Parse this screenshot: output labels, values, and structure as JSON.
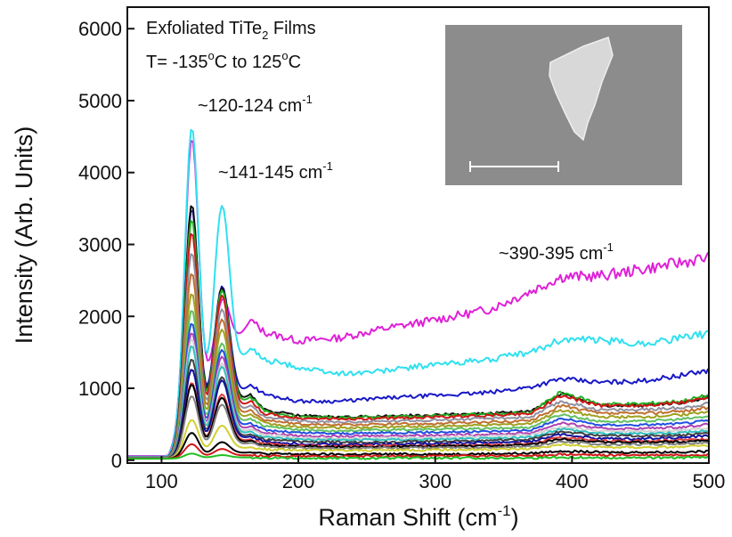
{
  "chart_data": {
    "type": "line",
    "title_line1": "Exfoliated TiTe",
    "title_line1_sub": "2",
    "title_line1_end": " Films",
    "title_line2": "T= -135",
    "title_line2_sup1": "o",
    "title_line2_mid": "C to 125",
    "title_line2_sup2": "o",
    "title_line2_end": "C",
    "xlabel": "Raman Shift (cm",
    "xlabel_sup": "-1",
    "xlabel_end": ")",
    "ylabel": "Intensity (Arb. Units)",
    "xlim": [
      75,
      500
    ],
    "ylim": [
      -40,
      6300
    ],
    "xticks": [
      100,
      200,
      300,
      400,
      500
    ],
    "yticks": [
      0,
      1000,
      2000,
      3000,
      4000,
      5000,
      6000
    ],
    "grid": false,
    "annotations": [
      {
        "text": "~120-124 cm",
        "sup": "-1",
        "x": 122,
        "y": 4970
      },
      {
        "text": "~141-145 cm",
        "sup": "-1",
        "x": 143,
        "y": 3870
      },
      {
        "text": "~390-395 cm",
        "sup": "-1",
        "x": 335,
        "y": 2730
      }
    ],
    "series_shape": {
      "x": [
        75,
        100,
        110,
        116,
        120,
        122,
        125,
        130,
        135,
        138,
        142,
        146,
        150,
        158,
        165,
        175,
        200,
        230,
        260,
        300,
        340,
        370,
        385,
        392,
        400,
        420,
        450,
        480,
        500
      ],
      "comment_free_weights": true
    },
    "series": [
      {
        "color": "#e020d8",
        "peak1": 5050,
        "peak2": 2500,
        "base": [
          1950,
          1780,
          1660,
          1700,
          1820,
          1950,
          2100,
          2350,
          2550,
          2560,
          2650,
          2750,
          2820
        ]
      },
      {
        "color": "#30e0f0",
        "peak1": 5080,
        "peak2": 3750,
        "base": [
          1550,
          1400,
          1290,
          1200,
          1240,
          1330,
          1400,
          1500,
          1680,
          1670,
          1620,
          1700,
          1760
        ]
      },
      {
        "color": "#1818c8",
        "peak1": 3800,
        "peak2": 2560,
        "base": [
          1050,
          920,
          820,
          820,
          860,
          900,
          940,
          1020,
          1130,
          1080,
          1100,
          1180,
          1250
        ]
      },
      {
        "color": "#101010",
        "peak1": 3820,
        "peak2": 2520,
        "base": [
          920,
          700,
          620,
          600,
          610,
          630,
          650,
          680,
          930,
          760,
          760,
          800,
          880
        ]
      },
      {
        "color": "#20b020",
        "peak1": 3600,
        "peak2": 2480,
        "base": [
          880,
          680,
          600,
          590,
          600,
          620,
          640,
          660,
          950,
          780,
          780,
          820,
          900
        ]
      },
      {
        "color": "#d01818",
        "peak1": 3400,
        "peak2": 2400,
        "base": [
          820,
          650,
          580,
          570,
          580,
          600,
          620,
          650,
          900,
          760,
          760,
          800,
          860
        ]
      },
      {
        "color": "#9090a0",
        "peak1": 3100,
        "peak2": 2200,
        "base": [
          760,
          600,
          540,
          530,
          540,
          560,
          580,
          600,
          820,
          700,
          700,
          730,
          790
        ]
      },
      {
        "color": "#c07030",
        "peak1": 2800,
        "peak2": 2050,
        "base": [
          700,
          560,
          500,
          490,
          500,
          510,
          530,
          550,
          760,
          650,
          650,
          680,
          730
        ]
      },
      {
        "color": "#a0a020",
        "peak1": 2500,
        "peak2": 1900,
        "base": [
          640,
          520,
          460,
          450,
          460,
          470,
          490,
          510,
          700,
          600,
          600,
          630,
          680
        ]
      },
      {
        "color": "#60c060",
        "peak1": 2250,
        "peak2": 1700,
        "base": [
          580,
          470,
          420,
          410,
          420,
          430,
          440,
          460,
          640,
          540,
          540,
          570,
          610
        ]
      },
      {
        "color": "#2050e0",
        "peak1": 2050,
        "peak2": 1600,
        "base": [
          520,
          420,
          380,
          370,
          380,
          390,
          400,
          420,
          580,
          490,
          490,
          510,
          550
        ]
      },
      {
        "color": "#b040b0",
        "peak1": 1900,
        "peak2": 1500,
        "base": [
          470,
          380,
          340,
          330,
          340,
          350,
          360,
          380,
          520,
          440,
          440,
          460,
          500
        ]
      },
      {
        "color": "#d0d0d0",
        "peak1": 1800,
        "peak2": 1400,
        "base": [
          430,
          350,
          310,
          300,
          310,
          320,
          330,
          350,
          470,
          400,
          400,
          420,
          450
        ]
      },
      {
        "color": "#30c0c0",
        "peak1": 1700,
        "peak2": 1350,
        "base": [
          400,
          320,
          290,
          280,
          285,
          290,
          300,
          320,
          440,
          370,
          370,
          385,
          410
        ]
      },
      {
        "color": "#404040",
        "peak1": 1500,
        "peak2": 1200,
        "base": [
          360,
          290,
          260,
          250,
          255,
          265,
          275,
          290,
          400,
          340,
          340,
          350,
          380
        ]
      },
      {
        "color": "#1010a0",
        "peak1": 1350,
        "peak2": 1150,
        "base": [
          330,
          260,
          230,
          220,
          225,
          235,
          245,
          260,
          360,
          300,
          300,
          315,
          340
        ]
      },
      {
        "color": "#e04040",
        "peak1": 1150,
        "peak2": 950,
        "base": [
          290,
          230,
          200,
          195,
          200,
          205,
          215,
          230,
          320,
          270,
          270,
          280,
          300
        ]
      },
      {
        "color": "#000000",
        "peak1": 1120,
        "peak2": 900,
        "base": [
          270,
          210,
          190,
          185,
          190,
          195,
          200,
          215,
          300,
          250,
          250,
          260,
          280
        ]
      },
      {
        "color": "#808080",
        "peak1": 950,
        "peak2": 800,
        "base": [
          240,
          190,
          170,
          165,
          170,
          175,
          180,
          190,
          260,
          220,
          220,
          230,
          250
        ]
      },
      {
        "color": "#d0d030",
        "peak1": 600,
        "peak2": 500,
        "base": [
          180,
          150,
          140,
          135,
          140,
          145,
          150,
          160,
          220,
          180,
          180,
          185,
          200
        ]
      },
      {
        "color": "#000000",
        "peak1": 400,
        "peak2": 260,
        "base": [
          110,
          90,
          85,
          80,
          85,
          85,
          90,
          95,
          130,
          110,
          110,
          115,
          120
        ]
      },
      {
        "color": "#d01818",
        "peak1": 230,
        "peak2": 160,
        "base": [
          70,
          60,
          55,
          55,
          55,
          58,
          60,
          62,
          80,
          70,
          70,
          72,
          78
        ]
      },
      {
        "color": "#20c020",
        "peak1": 90,
        "peak2": 70,
        "base": [
          40,
          30,
          28,
          28,
          28,
          30,
          30,
          32,
          40,
          35,
          35,
          36,
          40
        ]
      }
    ]
  },
  "inset": {
    "bg": "#8c8c8c",
    "scale_bar_color": "#ffffff",
    "flake_color": "#d8d8d8"
  }
}
